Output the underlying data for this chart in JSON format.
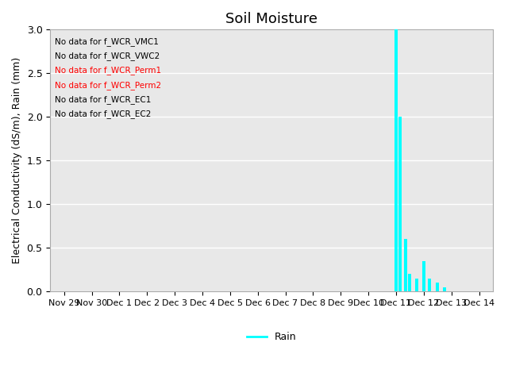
{
  "title": "Soil Moisture",
  "ylabel": "Electrical Conductivity (dS/m), Rain (mm)",
  "xlabel": "",
  "ylim": [
    0.0,
    3.0
  ],
  "yticks": [
    0.0,
    0.5,
    1.0,
    1.5,
    2.0,
    2.5,
    3.0
  ],
  "no_data_labels": [
    "No data for f_WCR_VMC1",
    "No data for f_WCR_VWC2",
    "No data for f_WCR_Perm1",
    "No data for f_WCR_Perm2",
    "No data for f_WCR_EC1",
    "No data for f_WCR_EC2"
  ],
  "x_tick_labels": [
    "Nov 29",
    "Nov 30",
    "Dec 1",
    "Dec 2",
    "Dec 3",
    "Dec 4",
    "Dec 5",
    "Dec 6",
    "Dec 7",
    "Dec 8",
    "Dec 9",
    "Dec 10",
    "Dec 11",
    "Dec 12",
    "Dec 13",
    "Dec 14"
  ],
  "rain_color": "#00FFFF",
  "rain_bar_width": 0.6,
  "rain_data": {
    "days": [
      11,
      11.3,
      11.5,
      11.7,
      12.0,
      12.3,
      12.5,
      13.0,
      13.3
    ],
    "values": [
      3.05,
      2.0,
      0.6,
      0.2,
      0.15,
      0.35,
      0.15,
      0.1,
      0.05
    ]
  },
  "background_color": "#e8e8e8",
  "grid_color": "#ffffff",
  "title_fontsize": 13,
  "axis_fontsize": 9,
  "legend_fontsize": 9
}
